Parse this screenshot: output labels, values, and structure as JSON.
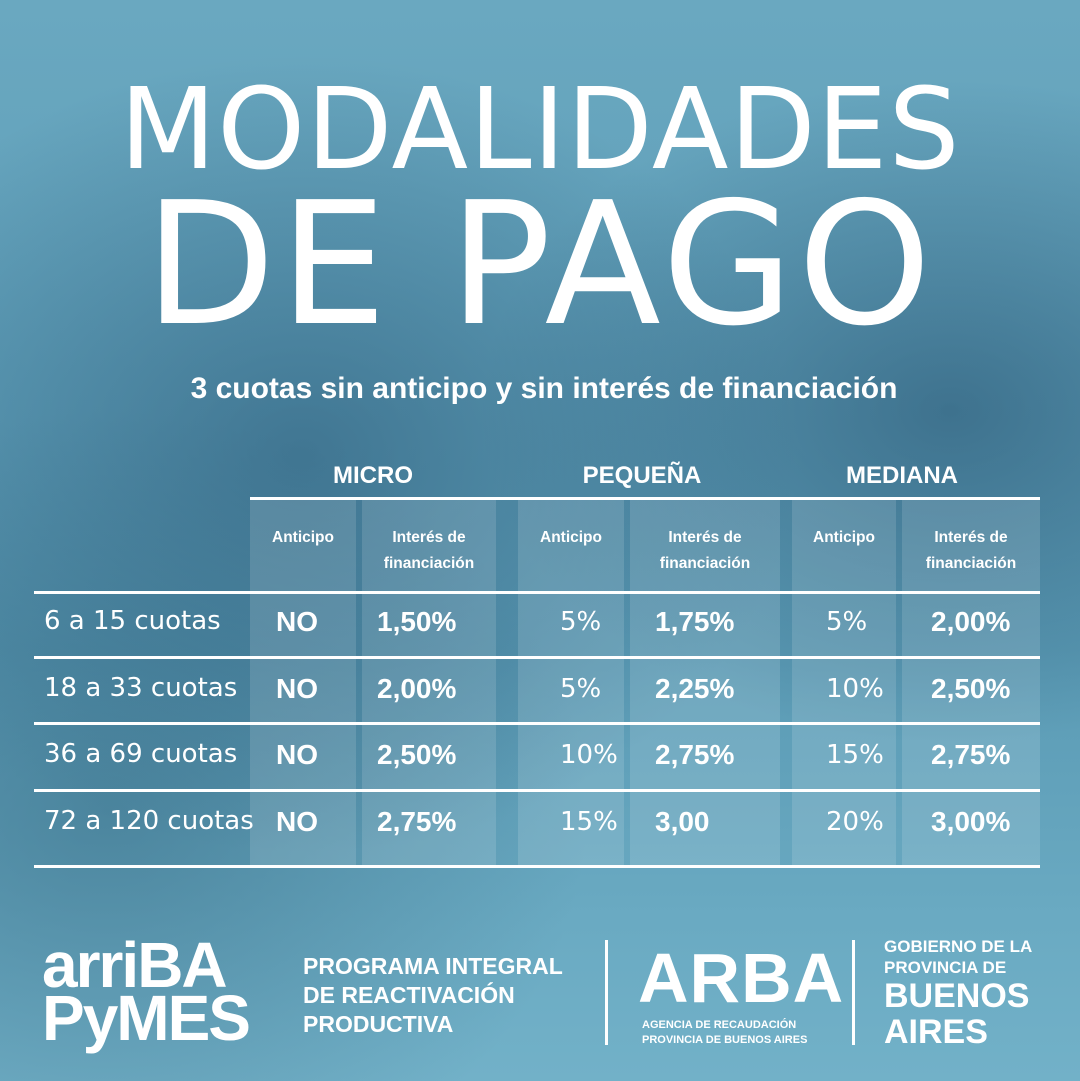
{
  "title": {
    "line1": "MODALIDADES",
    "line2": "DE PAGO"
  },
  "subtitle": "3 cuotas sin anticipo y sin interés de financiación",
  "categories": [
    "MICRO",
    "PEQUEÑA",
    "MEDIANA"
  ],
  "column_headers": {
    "anticipo": "Anticipo",
    "interes_line1": "Interés de",
    "interes_line2": "financiación"
  },
  "rows": [
    {
      "label": "6 a 15 cuotas",
      "values": [
        "NO",
        "1,50%",
        "5%",
        "1,75%",
        "5%",
        "2,00%"
      ]
    },
    {
      "label": "18 a 33 cuotas",
      "values": [
        "NO",
        "2,00%",
        "5%",
        "2,25%",
        "10%",
        "2,50%"
      ]
    },
    {
      "label": "36 a 69 cuotas",
      "values": [
        "NO",
        "2,50%",
        "10%",
        "2,75%",
        "15%",
        "2,75%"
      ]
    },
    {
      "label": "72 a 120 cuotas",
      "values": [
        "NO",
        "2,75%",
        "15%",
        "3,00",
        "20%",
        "3,00%"
      ]
    }
  ],
  "footer": {
    "arriba_line1": "arriBA",
    "arriba_line2": "PyMES",
    "programa_line1": "PROGRAMA INTEGRAL",
    "programa_line2": "DE REACTIVACIÓN",
    "programa_line3": "PRODUCTIVA",
    "arba": "ARBA",
    "arba_sub1": "AGENCIA DE RECAUDACIÓN",
    "arba_sub2": "PROVINCIA DE BUENOS AIRES",
    "gob_line1": "GOBIERNO DE LA",
    "gob_line2": "PROVINCIA DE",
    "gob_line3": "BUENOS",
    "gob_line4": "AIRES"
  },
  "colors": {
    "background": "#5f9fb9",
    "text": "#ffffff"
  }
}
